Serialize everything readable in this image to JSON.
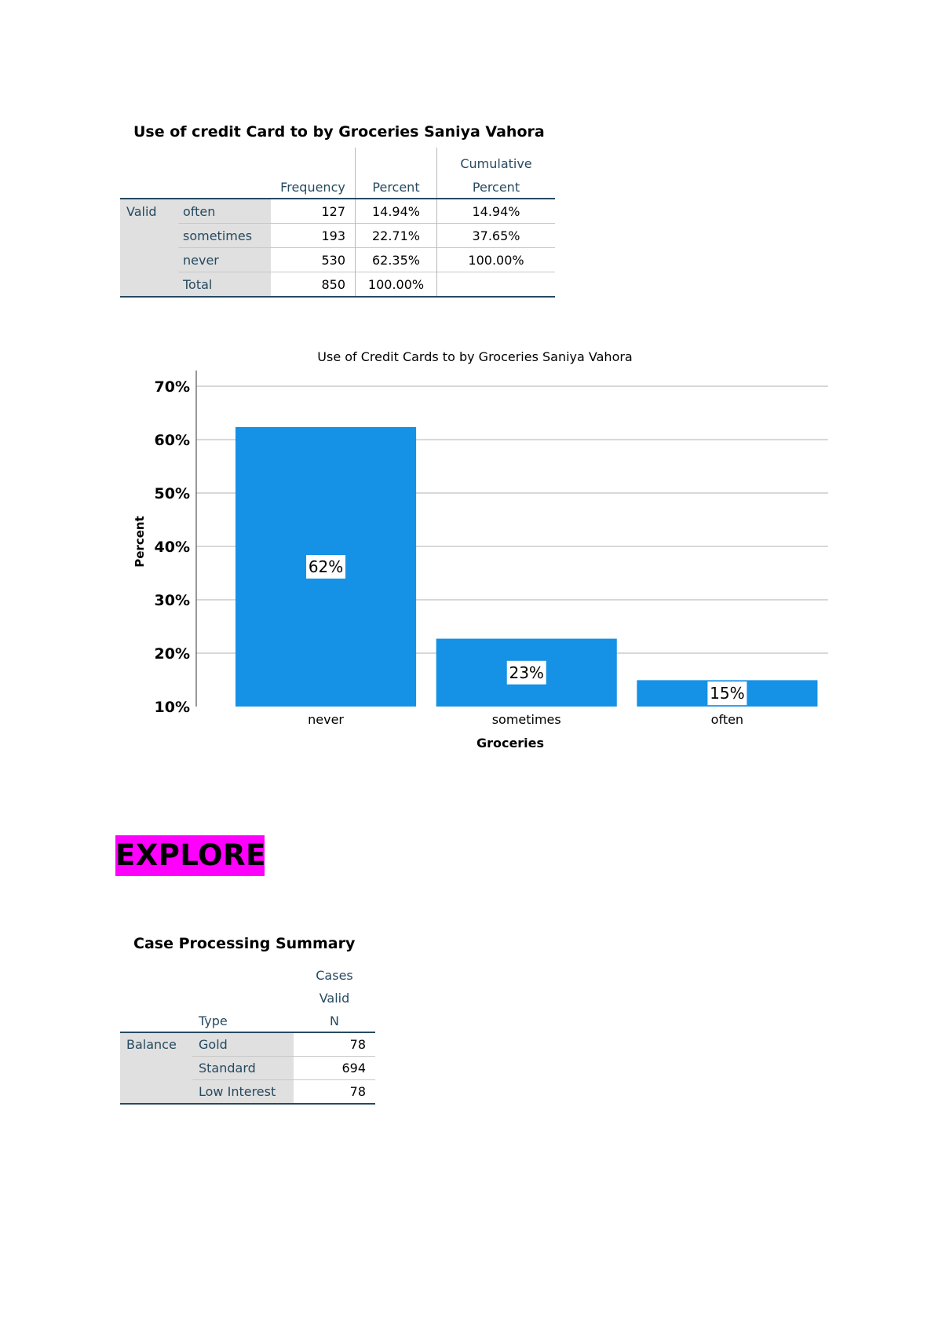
{
  "frequency_table": {
    "title": "Use of credit Card to by Groceries Saniya Vahora",
    "headers": {
      "frequency": "Frequency",
      "percent": "Percent",
      "cumulative_line1": "Cumulative",
      "cumulative_line2": "Percent"
    },
    "group_label": "Valid",
    "rows": [
      {
        "label": "often",
        "frequency": "127",
        "percent": "14.94%",
        "cumulative": "14.94%"
      },
      {
        "label": "sometimes",
        "frequency": "193",
        "percent": "22.71%",
        "cumulative": "37.65%"
      },
      {
        "label": "never",
        "frequency": "530",
        "percent": "62.35%",
        "cumulative": "100.00%"
      },
      {
        "label": "Total",
        "frequency": "850",
        "percent": "100.00%",
        "cumulative": ""
      }
    ]
  },
  "chart_data": {
    "type": "bar",
    "title": "Use of Credit Cards to by Groceries Saniya Vahora",
    "xlabel": "Groceries",
    "ylabel": "Percent",
    "categories": [
      "never",
      "sometimes",
      "often"
    ],
    "values": [
      62.35,
      22.71,
      14.94
    ],
    "data_labels": [
      "62%",
      "23%",
      "15%"
    ],
    "ylim": [
      10,
      70
    ],
    "yticks": [
      "10%",
      "20%",
      "30%",
      "40%",
      "50%",
      "60%",
      "70%"
    ],
    "grid": true,
    "bar_color": "#1591e6"
  },
  "explore": {
    "heading": "EXPLORE",
    "highlight_color": "#ff00ff"
  },
  "case_table": {
    "title": "Case Processing Summary",
    "header_cases": "Cases",
    "header_valid": "Valid",
    "header_type": "Type",
    "header_n": "N",
    "group_label": "Balance",
    "rows": [
      {
        "label": "Gold",
        "n": "78"
      },
      {
        "label": "Standard",
        "n": "694"
      },
      {
        "label": "Low Interest",
        "n": "78"
      }
    ]
  }
}
